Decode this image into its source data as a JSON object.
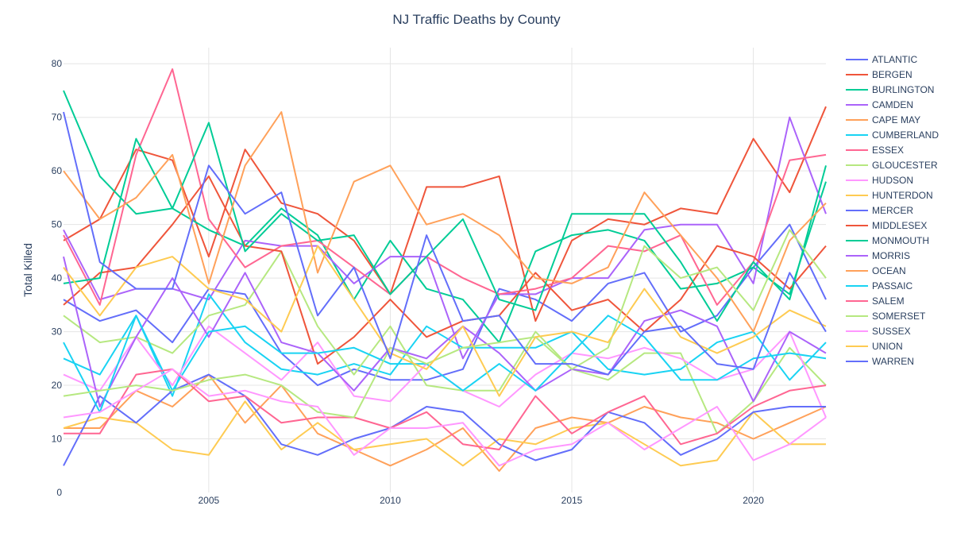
{
  "chart_data": {
    "type": "line",
    "title": "NJ Traffic Deaths by County",
    "xlabel": "",
    "ylabel": "Total Killed",
    "x": [
      2001,
      2002,
      2003,
      2004,
      2005,
      2006,
      2007,
      2008,
      2009,
      2010,
      2011,
      2012,
      2013,
      2014,
      2015,
      2016,
      2017,
      2018,
      2019,
      2020,
      2021,
      2022
    ],
    "xlim": [
      2001,
      2022
    ],
    "ylim": [
      0,
      83
    ],
    "x_ticks": [
      2005,
      2010,
      2015,
      2020
    ],
    "y_ticks": [
      0,
      10,
      20,
      30,
      40,
      50,
      60,
      70,
      80
    ],
    "grid": true,
    "legend_position": "right",
    "series": [
      {
        "name": "ATLANTIC",
        "color": "#636efa",
        "values": [
          36,
          32,
          34,
          28,
          38,
          37,
          26,
          20,
          23,
          21,
          21,
          23,
          38,
          36,
          32,
          39,
          41,
          30,
          33,
          42,
          50,
          36
        ]
      },
      {
        "name": "BERGEN",
        "color": "#ef553b",
        "values": [
          47,
          51,
          64,
          62,
          44,
          64,
          54,
          52,
          47,
          37,
          57,
          57,
          59,
          32,
          47,
          51,
          50,
          53,
          52,
          66,
          56,
          72
        ]
      },
      {
        "name": "BURLINGTON",
        "color": "#00cc96",
        "values": [
          75,
          59,
          52,
          53,
          49,
          46,
          53,
          48,
          36,
          47,
          38,
          36,
          28,
          45,
          48,
          49,
          47,
          38,
          39,
          42,
          37,
          58
        ]
      },
      {
        "name": "CAMDEN",
        "color": "#ab63fa",
        "values": [
          49,
          36,
          38,
          38,
          36,
          47,
          46,
          46,
          39,
          44,
          44,
          25,
          37,
          37,
          40,
          40,
          49,
          50,
          50,
          39,
          70,
          52
        ]
      },
      {
        "name": "CAPE MAY",
        "color": "#ffa15a",
        "values": [
          12,
          12,
          19,
          16,
          22,
          13,
          20,
          11,
          8,
          5,
          8,
          12,
          4,
          12,
          14,
          13,
          16,
          14,
          13,
          10,
          13,
          16
        ]
      },
      {
        "name": "CUMBERLAND",
        "color": "#19d3f3",
        "values": [
          25,
          22,
          33,
          18,
          37,
          28,
          23,
          22,
          24,
          22,
          31,
          27,
          27,
          27,
          30,
          23,
          22,
          23,
          28,
          30,
          21,
          28
        ]
      },
      {
        "name": "ESSEX",
        "color": "#ff6692",
        "values": [
          48,
          35,
          63,
          79,
          51,
          42,
          46,
          47,
          42,
          37,
          44,
          40,
          37,
          38,
          40,
          46,
          45,
          48,
          35,
          43,
          62,
          63
        ]
      },
      {
        "name": "GLOUCESTER",
        "color": "#b6e880",
        "values": [
          33,
          28,
          29,
          26,
          33,
          35,
          45,
          31,
          22,
          31,
          20,
          19,
          19,
          30,
          23,
          21,
          26,
          26,
          11,
          17,
          27,
          20
        ]
      },
      {
        "name": "HUDSON",
        "color": "#ff97ff",
        "values": [
          22,
          19,
          29,
          20,
          31,
          26,
          21,
          28,
          18,
          17,
          24,
          19,
          16,
          22,
          26,
          25,
          27,
          25,
          21,
          23,
          30,
          14
        ]
      },
      {
        "name": "HUNTERDON",
        "color": "#fecb52",
        "values": [
          12,
          14,
          13,
          8,
          7,
          17,
          8,
          13,
          8,
          9,
          10,
          5,
          10,
          9,
          12,
          13,
          9,
          5,
          6,
          15,
          9,
          9
        ]
      },
      {
        "name": "MERCER",
        "color": "#636efa",
        "values": [
          5,
          18,
          13,
          19,
          22,
          18,
          9,
          7,
          10,
          12,
          16,
          15,
          9,
          6,
          8,
          15,
          13,
          7,
          10,
          15,
          16,
          16
        ]
      },
      {
        "name": "MIDDLESEX",
        "color": "#ef553b",
        "values": [
          35,
          41,
          42,
          50,
          59,
          46,
          45,
          24,
          29,
          36,
          29,
          32,
          33,
          41,
          34,
          36,
          30,
          36,
          46,
          44,
          38,
          46
        ]
      },
      {
        "name": "MONMOUTH",
        "color": "#00cc96",
        "values": [
          39,
          40,
          66,
          53,
          69,
          45,
          52,
          47,
          48,
          37,
          44,
          51,
          36,
          34,
          52,
          52,
          52,
          43,
          32,
          43,
          36,
          61
        ]
      },
      {
        "name": "MORRIS",
        "color": "#ab63fa",
        "values": [
          44,
          16,
          29,
          40,
          29,
          41,
          28,
          26,
          19,
          27,
          25,
          31,
          26,
          19,
          23,
          22,
          32,
          34,
          31,
          17,
          30,
          26
        ]
      },
      {
        "name": "OCEAN",
        "color": "#ffa15a",
        "values": [
          60,
          51,
          55,
          63,
          39,
          61,
          71,
          41,
          58,
          61,
          50,
          52,
          48,
          40,
          39,
          42,
          56,
          48,
          40,
          30,
          47,
          54
        ]
      },
      {
        "name": "PASSAIC",
        "color": "#19d3f3",
        "values": [
          28,
          15,
          33,
          19,
          30,
          31,
          26,
          26,
          27,
          24,
          24,
          19,
          24,
          19,
          26,
          33,
          29,
          21,
          21,
          25,
          26,
          25
        ]
      },
      {
        "name": "SALEM",
        "color": "#ff6692",
        "values": [
          11,
          11,
          22,
          23,
          17,
          18,
          13,
          14,
          14,
          12,
          15,
          9,
          8,
          18,
          11,
          15,
          18,
          9,
          11,
          16,
          19,
          20
        ]
      },
      {
        "name": "SOMERSET",
        "color": "#b6e880",
        "values": [
          18,
          19,
          20,
          19,
          21,
          22,
          20,
          15,
          14,
          27,
          24,
          27,
          28,
          29,
          23,
          27,
          46,
          40,
          42,
          34,
          49,
          40
        ]
      },
      {
        "name": "SUSSEX",
        "color": "#ff97ff",
        "values": [
          14,
          15,
          19,
          23,
          18,
          19,
          17,
          16,
          7,
          12,
          12,
          13,
          5,
          8,
          9,
          13,
          8,
          12,
          16,
          6,
          9,
          14
        ]
      },
      {
        "name": "UNION",
        "color": "#fecb52",
        "values": [
          42,
          33,
          42,
          44,
          38,
          36,
          30,
          46,
          36,
          26,
          23,
          31,
          18,
          29,
          30,
          28,
          38,
          29,
          26,
          29,
          34,
          31
        ]
      },
      {
        "name": "WARREN",
        "color": "#636efa",
        "values": [
          71,
          43,
          38,
          38,
          61,
          52,
          56,
          33,
          42,
          25,
          48,
          32,
          33,
          24,
          24,
          22,
          30,
          31,
          24,
          23,
          41,
          30
        ]
      }
    ]
  }
}
